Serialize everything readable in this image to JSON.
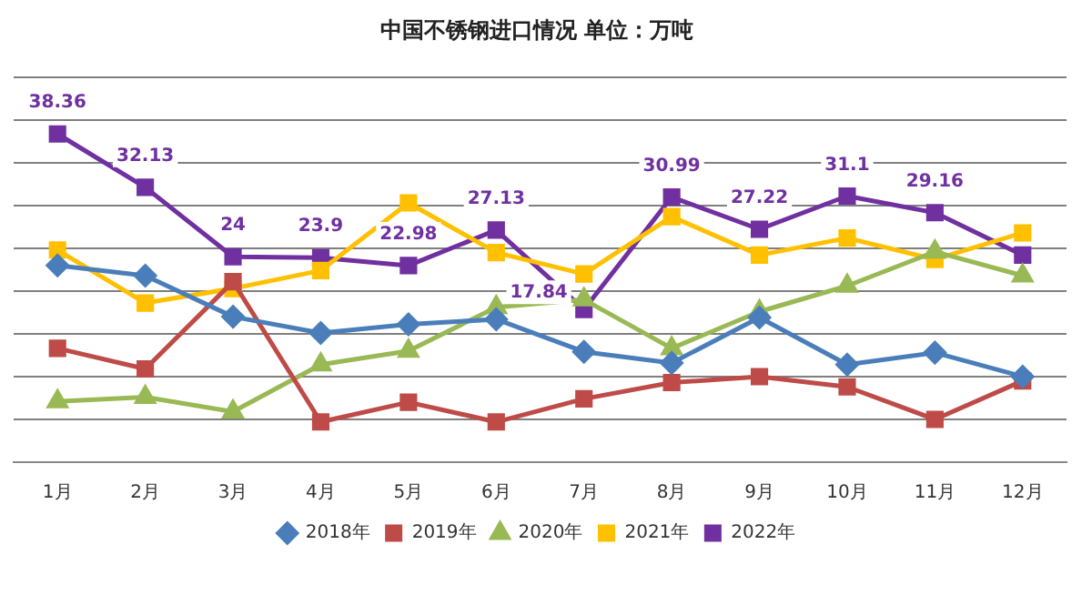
{
  "chart_data": {
    "type": "line",
    "title": "中国不锈钢进口情况 单位：万吨",
    "categories": [
      "1月",
      "2月",
      "3月",
      "4月",
      "5月",
      "6月",
      "7月",
      "8月",
      "9月",
      "10月",
      "11月",
      "12月"
    ],
    "series": [
      {
        "name": "2018年",
        "color": "#4a7ebb",
        "marker": "diamond",
        "values": [
          23.0,
          21.8,
          17.0,
          15.1,
          16.1,
          16.7,
          12.9,
          11.6,
          16.9,
          11.4,
          12.8,
          10.0
        ]
      },
      {
        "name": "2019年",
        "color": "#be4b48",
        "marker": "square",
        "values": [
          13.3,
          10.9,
          21.1,
          4.7,
          7.0,
          4.7,
          7.4,
          9.3,
          10.0,
          8.8,
          5.0,
          9.5
        ]
      },
      {
        "name": "2020年",
        "color": "#98b954",
        "marker": "triangle",
        "values": [
          7.1,
          7.6,
          5.9,
          11.4,
          13.0,
          18.1,
          19.0,
          13.3,
          17.6,
          20.6,
          24.6,
          21.8
        ]
      },
      {
        "name": "2021年",
        "color": "#ffc000",
        "marker": "square",
        "values": [
          24.8,
          18.6,
          20.3,
          22.4,
          30.3,
          24.5,
          22.0,
          28.7,
          24.2,
          26.2,
          23.7,
          26.8
        ]
      },
      {
        "name": "2022年",
        "color": "#7030a0",
        "marker": "square",
        "values": [
          38.36,
          32.13,
          24,
          23.9,
          22.98,
          27.13,
          17.84,
          30.99,
          27.22,
          31.1,
          29.16,
          24.2
        ],
        "value_labels": [
          "38.36",
          "32.13",
          "24",
          "23.9",
          "22.98",
          "27.13",
          "17.84",
          "30.99",
          "27.22",
          "31.1",
          "29.16",
          null
        ]
      }
    ],
    "ylim": [
      0,
      45
    ],
    "yticks": [
      {
        "value": 0,
        "label": null
      },
      {
        "value": 5,
        "label": null
      },
      {
        "value": 10,
        "label": null
      },
      {
        "value": 15,
        "label": null
      },
      {
        "value": 20,
        "label": null
      },
      {
        "value": 25,
        "label": null
      },
      {
        "value": 30,
        "label": null
      },
      {
        "value": 35,
        "label": null
      },
      {
        "value": 40,
        "label": null
      },
      {
        "value": 45,
        "label": null
      }
    ],
    "grid": "y",
    "legend": "bottom",
    "tick_labels": "x",
    "line_style": "solid"
  }
}
